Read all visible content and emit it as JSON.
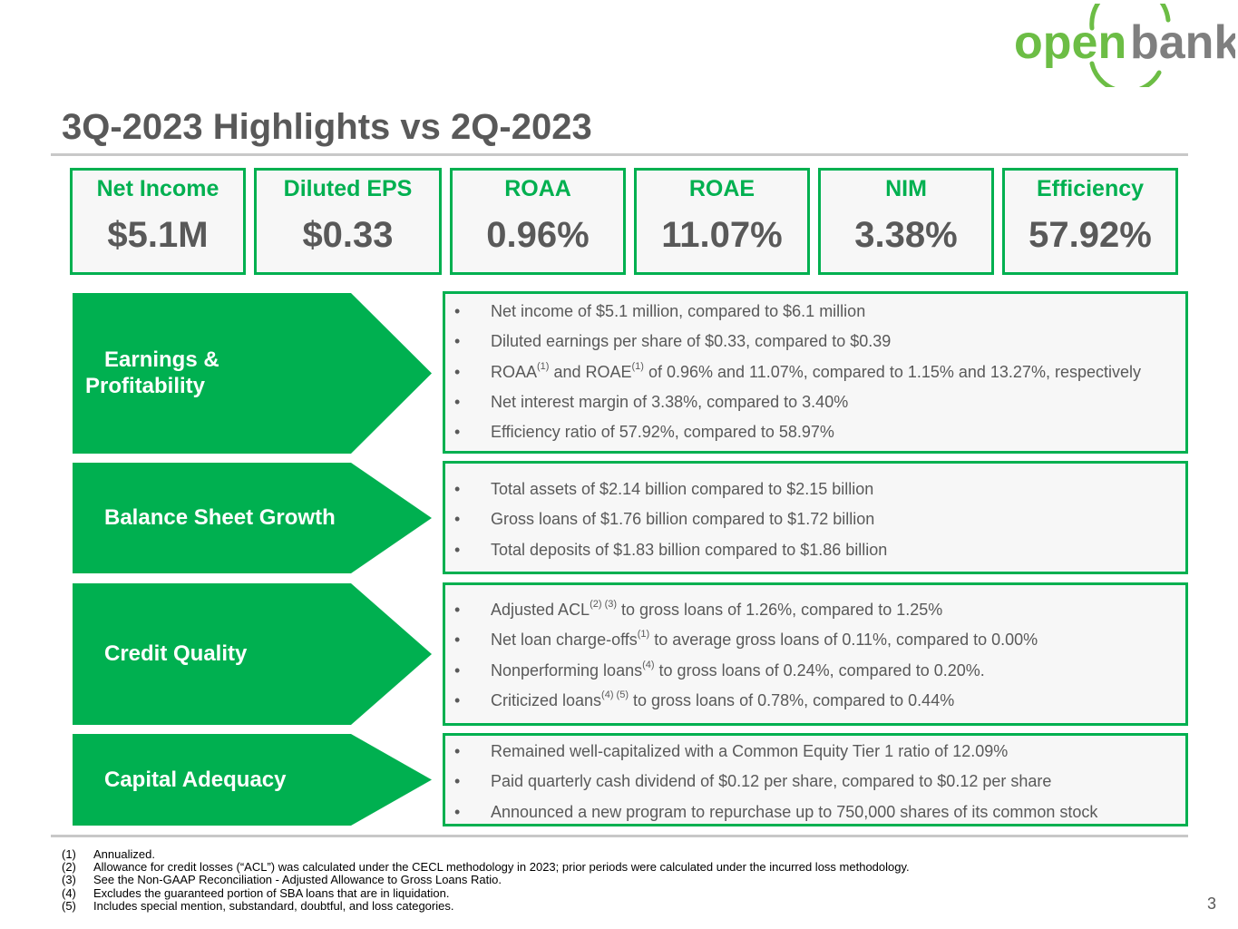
{
  "brand": {
    "logo_text_left": "open",
    "logo_text_right": "bank",
    "green": "#00b050",
    "logo_green": "#6cbd45",
    "gray": "#595959"
  },
  "title": "3Q-2023 Highlights vs 2Q-2023",
  "kpis": [
    {
      "label": "Net Income",
      "value": "$5.1M"
    },
    {
      "label": "Diluted EPS",
      "value": "$0.33"
    },
    {
      "label": "ROAA",
      "value": "0.96%"
    },
    {
      "label": "ROAE",
      "value": "11.07%"
    },
    {
      "label": "NIM",
      "value": "3.38%"
    },
    {
      "label": "Efficiency",
      "value": "57.92%"
    }
  ],
  "sections": [
    {
      "label_line1": "Earnings &",
      "label_line2": "Profitability",
      "bullets": [
        {
          "text": "Net income of $5.1 million, compared to $6.1 million"
        },
        {
          "text": "Diluted earnings per share of $0.33, compared to $0.39"
        },
        {
          "t1": "ROAA",
          "s1": "(1)",
          "t2": " and ROAE",
          "s2": "(1)",
          "t3": " of 0.96% and 11.07%, compared to 1.15% and 13.27%, respectively"
        },
        {
          "text": "Net interest margin of 3.38%, compared to 3.40%"
        },
        {
          "text": "Efficiency ratio of 57.92%, compared to 58.97%"
        }
      ]
    },
    {
      "label": "Balance Sheet Growth",
      "bullets": [
        {
          "text": "Total assets of $2.14 billion compared to $2.15 billion"
        },
        {
          "text": "Gross loans of $1.76 billion compared to $1.72 billion"
        },
        {
          "text": "Total deposits of $1.83 billion compared to $1.86 billion"
        }
      ]
    },
    {
      "label": "Credit Quality",
      "bullets": [
        {
          "t1": "Adjusted ACL",
          "s1": "(2) (3)",
          "t2": " to gross loans of 1.26%, compared to 1.25%"
        },
        {
          "t1": "Net loan charge-offs",
          "s1": "(1)",
          "t2": " to average gross loans of 0.11%, compared to 0.00%"
        },
        {
          "t1": "Nonperforming loans",
          "s1": "(4)",
          "t2": " to gross loans of 0.24%, compared to 0.20%."
        },
        {
          "t1": "Criticized loans",
          "s1": "(4) (5)",
          "t2": " to gross loans of 0.78%, compared to 0.44%"
        }
      ]
    },
    {
      "label": "Capital Adequacy",
      "bullets": [
        {
          "text": "Remained well-capitalized with a Common Equity Tier 1 ratio of 12.09%"
        },
        {
          "text": "Paid quarterly cash dividend of $0.12 per share, compared to $0.12 per share"
        },
        {
          "text": "Announced a new program to repurchase up to 750,000 shares of its common stock"
        }
      ]
    }
  ],
  "bullet_glyph": "•",
  "footnotes": [
    {
      "num": "(1)",
      "text": "Annualized."
    },
    {
      "num": "(2)",
      "text": "Allowance for credit losses (“ACL”) was calculated under the CECL methodology in 2023; prior periods were calculated under the incurred loss methodology."
    },
    {
      "num": "(3)",
      "text": "See the Non-GAAP Reconciliation - Adjusted Allowance to Gross Loans Ratio."
    },
    {
      "num": "(4)",
      "text": "Excludes the guaranteed portion of SBA loans that are in liquidation."
    },
    {
      "num": "(5)",
      "text": "Includes special mention, substandard, doubtful, and loss categories."
    }
  ],
  "page_number": "3"
}
